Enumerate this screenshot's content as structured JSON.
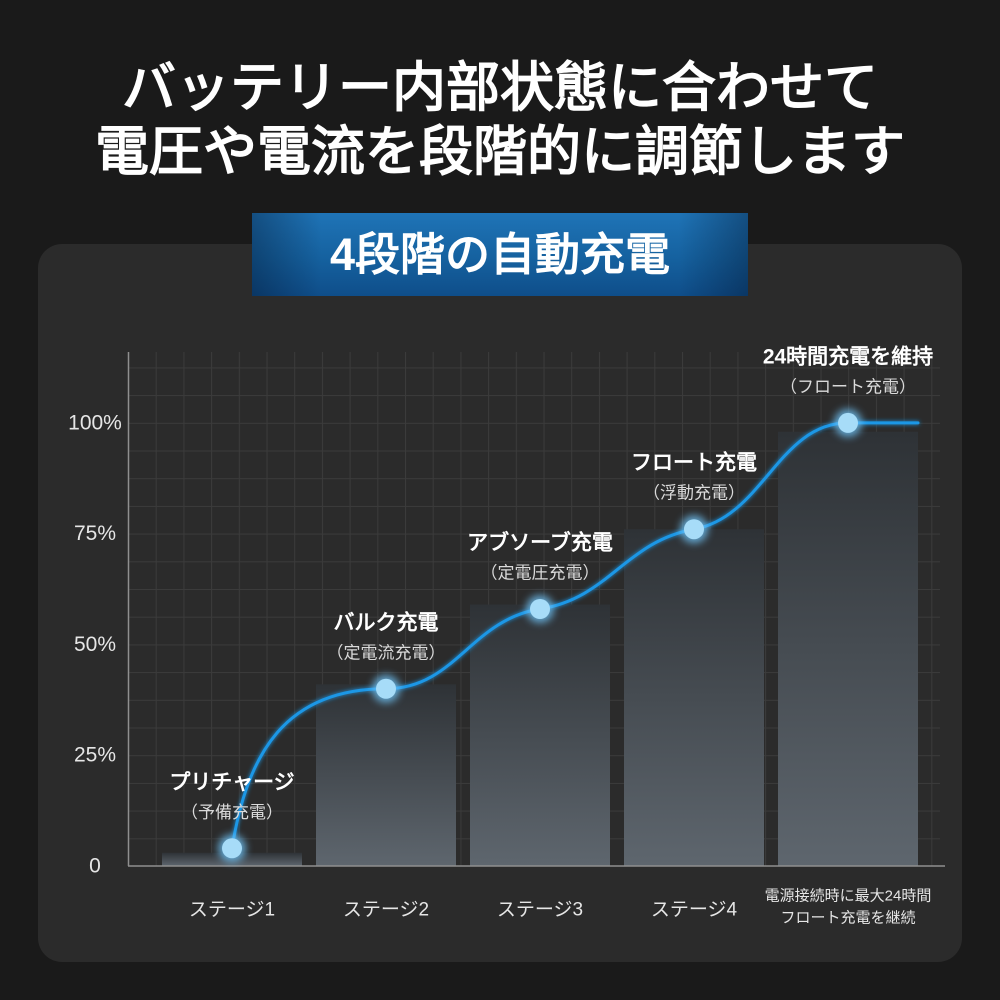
{
  "headline": {
    "line1": "バッテリー内部状態に合わせて",
    "line2": "電圧や電流を段階的に調節します"
  },
  "colors": {
    "background": "#1a1a1a",
    "panel": "#2b2b2b",
    "curve": "#1b97e6",
    "point": "#a7dcf8",
    "point_glow": "#6fc3f6",
    "bar_top": "#2e3236",
    "bar_bottom": "#5e666e",
    "grid": "#3b3b3b",
    "axis": "#8f8f8f",
    "label": "#e6e6e6",
    "sublabel": "#dadada"
  },
  "chart_data": {
    "type": "bar",
    "title": "4段階の自動充電",
    "categories": [
      "ステージ1",
      "ステージ2",
      "ステージ3",
      "ステージ4",
      [
        "電源接続時に最大24時間",
        "フロート充電を継続"
      ]
    ],
    "series": [
      {
        "type": "bar",
        "values": [
          3,
          41,
          59,
          76,
          98
        ]
      },
      {
        "type": "line",
        "values": [
          4,
          40,
          58,
          76,
          100
        ]
      }
    ],
    "point_labels": [
      {
        "title": "プリチャージ",
        "subtitle": "（予備充電）"
      },
      {
        "title": "バルク充電",
        "subtitle": "（定電流充電）"
      },
      {
        "title": "アブソーブ充電",
        "subtitle": "（定電圧充電）"
      },
      {
        "title": "フロート充電",
        "subtitle": "（浮動充電）"
      },
      {
        "title": "24時間充電を維持",
        "subtitle": "（フロート充電）"
      }
    ],
    "yticks": [
      0,
      25,
      50,
      75,
      100
    ],
    "ytick_labels": [
      "0",
      "25%",
      "50%",
      "75%",
      "100%"
    ],
    "ylim": [
      0,
      116
    ],
    "grid": true
  }
}
